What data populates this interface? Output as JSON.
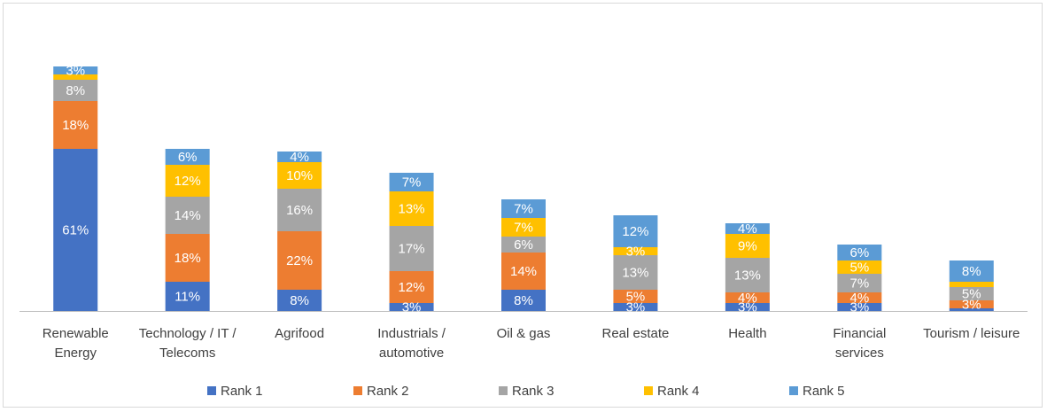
{
  "chart_data": {
    "type": "bar",
    "stacked": true,
    "title": "",
    "xlabel": "",
    "ylabel": "",
    "ylim": [
      0,
      100
    ],
    "grid": false,
    "legend_position": "bottom",
    "value_suffix": "%",
    "categories": [
      "Renewable Energy",
      "Technology / IT / Telecoms",
      "Agrifood",
      "Industrials / automotive",
      "Oil & gas",
      "Real estate",
      "Health",
      "Financial services",
      "Tourism / leisure"
    ],
    "category_lines": [
      [
        "Renewable",
        "Energy"
      ],
      [
        "Technology / IT /",
        "Telecoms"
      ],
      [
        "Agrifood"
      ],
      [
        "Industrials /",
        "automotive"
      ],
      [
        "Oil & gas"
      ],
      [
        "Real estate"
      ],
      [
        "Health"
      ],
      [
        "Financial",
        "services"
      ],
      [
        "Tourism / leisure"
      ]
    ],
    "series": [
      {
        "name": "Rank 1",
        "color": "#4472C4",
        "values": [
          61,
          11,
          8,
          3,
          8,
          3,
          3,
          3,
          1
        ]
      },
      {
        "name": "Rank 2",
        "color": "#ED7D31",
        "values": [
          18,
          18,
          22,
          12,
          14,
          5,
          4,
          4,
          3
        ]
      },
      {
        "name": "Rank 3",
        "color": "#A5A5A5",
        "values": [
          8,
          14,
          16,
          17,
          6,
          13,
          13,
          7,
          5
        ]
      },
      {
        "name": "Rank 4",
        "color": "#FFC000",
        "values": [
          2,
          12,
          10,
          13,
          7,
          3,
          9,
          5,
          2
        ]
      },
      {
        "name": "Rank 5",
        "color": "#5B9BD5",
        "values": [
          3,
          6,
          4,
          7,
          7,
          12,
          4,
          6,
          8
        ]
      }
    ],
    "labels": [
      [
        "61%",
        "11%",
        "8%",
        "3%",
        "8%",
        "3%",
        "3%",
        "3%",
        ""
      ],
      [
        "18%",
        "18%",
        "22%",
        "12%",
        "14%",
        "5%",
        "4%",
        "4%",
        "3%"
      ],
      [
        "8%",
        "14%",
        "16%",
        "17%",
        "6%",
        "13%",
        "13%",
        "7%",
        "5%"
      ],
      [
        "",
        "12%",
        "10%",
        "13%",
        "7%",
        "3%",
        "9%",
        "5%",
        ""
      ],
      [
        "3%",
        "6%",
        "4%",
        "7%",
        "7%",
        "12%",
        "4%",
        "6%",
        "8%"
      ]
    ]
  }
}
